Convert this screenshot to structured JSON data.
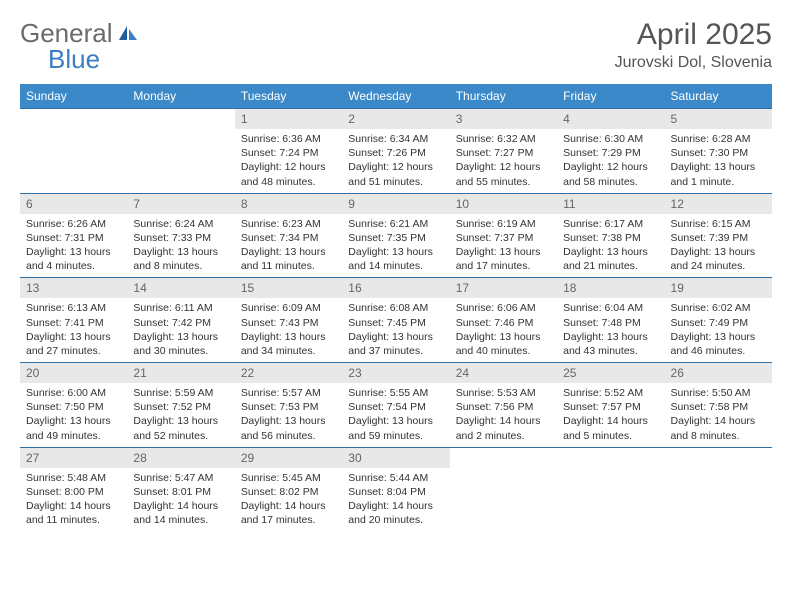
{
  "logo": {
    "text1": "General",
    "text2": "Blue"
  },
  "title": "April 2025",
  "subtitle": "Jurovski Dol, Slovenia",
  "colors": {
    "header_bg": "#3b89c9",
    "header_text": "#ffffff",
    "daynum_bg": "#e8e8e8",
    "row_border": "#2f6fa3",
    "logo_gray": "#6b6b6b",
    "logo_blue": "#3a7fc4"
  },
  "weekdays": [
    "Sunday",
    "Monday",
    "Tuesday",
    "Wednesday",
    "Thursday",
    "Friday",
    "Saturday"
  ],
  "weeks": [
    [
      {
        "empty": true
      },
      {
        "empty": true
      },
      {
        "day": "1",
        "sunrise": "Sunrise: 6:36 AM",
        "sunset": "Sunset: 7:24 PM",
        "daylight": "Daylight: 12 hours and 48 minutes."
      },
      {
        "day": "2",
        "sunrise": "Sunrise: 6:34 AM",
        "sunset": "Sunset: 7:26 PM",
        "daylight": "Daylight: 12 hours and 51 minutes."
      },
      {
        "day": "3",
        "sunrise": "Sunrise: 6:32 AM",
        "sunset": "Sunset: 7:27 PM",
        "daylight": "Daylight: 12 hours and 55 minutes."
      },
      {
        "day": "4",
        "sunrise": "Sunrise: 6:30 AM",
        "sunset": "Sunset: 7:29 PM",
        "daylight": "Daylight: 12 hours and 58 minutes."
      },
      {
        "day": "5",
        "sunrise": "Sunrise: 6:28 AM",
        "sunset": "Sunset: 7:30 PM",
        "daylight": "Daylight: 13 hours and 1 minute."
      }
    ],
    [
      {
        "day": "6",
        "sunrise": "Sunrise: 6:26 AM",
        "sunset": "Sunset: 7:31 PM",
        "daylight": "Daylight: 13 hours and 4 minutes."
      },
      {
        "day": "7",
        "sunrise": "Sunrise: 6:24 AM",
        "sunset": "Sunset: 7:33 PM",
        "daylight": "Daylight: 13 hours and 8 minutes."
      },
      {
        "day": "8",
        "sunrise": "Sunrise: 6:23 AM",
        "sunset": "Sunset: 7:34 PM",
        "daylight": "Daylight: 13 hours and 11 minutes."
      },
      {
        "day": "9",
        "sunrise": "Sunrise: 6:21 AM",
        "sunset": "Sunset: 7:35 PM",
        "daylight": "Daylight: 13 hours and 14 minutes."
      },
      {
        "day": "10",
        "sunrise": "Sunrise: 6:19 AM",
        "sunset": "Sunset: 7:37 PM",
        "daylight": "Daylight: 13 hours and 17 minutes."
      },
      {
        "day": "11",
        "sunrise": "Sunrise: 6:17 AM",
        "sunset": "Sunset: 7:38 PM",
        "daylight": "Daylight: 13 hours and 21 minutes."
      },
      {
        "day": "12",
        "sunrise": "Sunrise: 6:15 AM",
        "sunset": "Sunset: 7:39 PM",
        "daylight": "Daylight: 13 hours and 24 minutes."
      }
    ],
    [
      {
        "day": "13",
        "sunrise": "Sunrise: 6:13 AM",
        "sunset": "Sunset: 7:41 PM",
        "daylight": "Daylight: 13 hours and 27 minutes."
      },
      {
        "day": "14",
        "sunrise": "Sunrise: 6:11 AM",
        "sunset": "Sunset: 7:42 PM",
        "daylight": "Daylight: 13 hours and 30 minutes."
      },
      {
        "day": "15",
        "sunrise": "Sunrise: 6:09 AM",
        "sunset": "Sunset: 7:43 PM",
        "daylight": "Daylight: 13 hours and 34 minutes."
      },
      {
        "day": "16",
        "sunrise": "Sunrise: 6:08 AM",
        "sunset": "Sunset: 7:45 PM",
        "daylight": "Daylight: 13 hours and 37 minutes."
      },
      {
        "day": "17",
        "sunrise": "Sunrise: 6:06 AM",
        "sunset": "Sunset: 7:46 PM",
        "daylight": "Daylight: 13 hours and 40 minutes."
      },
      {
        "day": "18",
        "sunrise": "Sunrise: 6:04 AM",
        "sunset": "Sunset: 7:48 PM",
        "daylight": "Daylight: 13 hours and 43 minutes."
      },
      {
        "day": "19",
        "sunrise": "Sunrise: 6:02 AM",
        "sunset": "Sunset: 7:49 PM",
        "daylight": "Daylight: 13 hours and 46 minutes."
      }
    ],
    [
      {
        "day": "20",
        "sunrise": "Sunrise: 6:00 AM",
        "sunset": "Sunset: 7:50 PM",
        "daylight": "Daylight: 13 hours and 49 minutes."
      },
      {
        "day": "21",
        "sunrise": "Sunrise: 5:59 AM",
        "sunset": "Sunset: 7:52 PM",
        "daylight": "Daylight: 13 hours and 52 minutes."
      },
      {
        "day": "22",
        "sunrise": "Sunrise: 5:57 AM",
        "sunset": "Sunset: 7:53 PM",
        "daylight": "Daylight: 13 hours and 56 minutes."
      },
      {
        "day": "23",
        "sunrise": "Sunrise: 5:55 AM",
        "sunset": "Sunset: 7:54 PM",
        "daylight": "Daylight: 13 hours and 59 minutes."
      },
      {
        "day": "24",
        "sunrise": "Sunrise: 5:53 AM",
        "sunset": "Sunset: 7:56 PM",
        "daylight": "Daylight: 14 hours and 2 minutes."
      },
      {
        "day": "25",
        "sunrise": "Sunrise: 5:52 AM",
        "sunset": "Sunset: 7:57 PM",
        "daylight": "Daylight: 14 hours and 5 minutes."
      },
      {
        "day": "26",
        "sunrise": "Sunrise: 5:50 AM",
        "sunset": "Sunset: 7:58 PM",
        "daylight": "Daylight: 14 hours and 8 minutes."
      }
    ],
    [
      {
        "day": "27",
        "sunrise": "Sunrise: 5:48 AM",
        "sunset": "Sunset: 8:00 PM",
        "daylight": "Daylight: 14 hours and 11 minutes."
      },
      {
        "day": "28",
        "sunrise": "Sunrise: 5:47 AM",
        "sunset": "Sunset: 8:01 PM",
        "daylight": "Daylight: 14 hours and 14 minutes."
      },
      {
        "day": "29",
        "sunrise": "Sunrise: 5:45 AM",
        "sunset": "Sunset: 8:02 PM",
        "daylight": "Daylight: 14 hours and 17 minutes."
      },
      {
        "day": "30",
        "sunrise": "Sunrise: 5:44 AM",
        "sunset": "Sunset: 8:04 PM",
        "daylight": "Daylight: 14 hours and 20 minutes."
      },
      {
        "empty": true
      },
      {
        "empty": true
      },
      {
        "empty": true
      }
    ]
  ]
}
